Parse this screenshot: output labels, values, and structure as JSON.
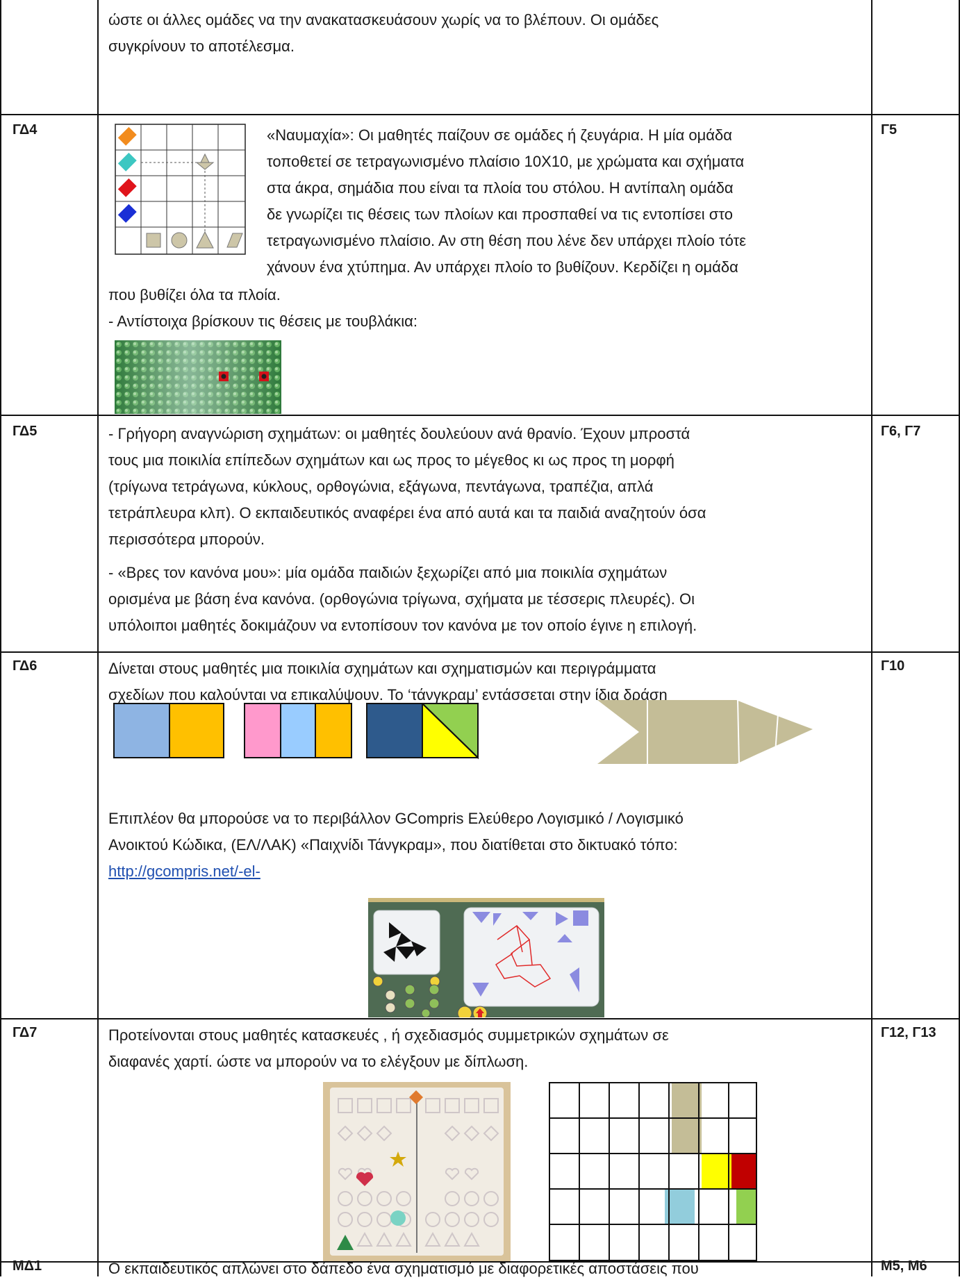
{
  "rows": [
    {
      "code": "",
      "ref": "",
      "lines": [
        "ώστε οι άλλες ομάδες να την ανακατασκευάσουν χωρίς να το βλέπουν. Οι ομάδες",
        "συγκρίνουν το αποτέλεσμα."
      ]
    },
    {
      "code": "ΓΔ4",
      "ref": "Γ5",
      "wrap_lines": [
        "«Ναυμαχία»: Οι μαθητές παίζουν σε ομάδες ή ζευγάρια. Η μία ομάδα",
        "τοποθετεί σε τετραγωνισμένο πλαίσιο 10Χ10, με χρώματα και σχήματα",
        "στα άκρα, σημάδια που είναι τα πλοία του στόλου. Η αντίπαλη ομάδα",
        "δε γνωρίζει τις θέσεις των πλοίων και προσπαθεί να τις εντοπίσει στο",
        "τετραγωνισμένο πλαίσιο. Αν στη θέση που λένε δεν υπάρχει πλοίο τότε",
        "χάνουν ένα χτύπημα. Αν υπάρχει πλοίο το βυθίζουν. Κερδίζει η ομάδα"
      ],
      "lines": [
        "που βυθίζει όλα τα πλοία.",
        "- Αντίστοιχα βρίσκουν τις θέσεις με τουβλάκια:"
      ]
    },
    {
      "code": "ΓΔ5",
      "ref": "Γ6, Γ7",
      "para1": [
        "- Γρήγορη αναγνώριση σχημάτων: οι μαθητές δουλεύουν ανά θρανίο. Έχουν μπροστά",
        "τους μια ποικιλία επίπεδων σχημάτων και ως προς το μέγεθος κι ως προς τη μορφή",
        "(τρίγωνα τετράγωνα, κύκλους, ορθογώνια, εξάγωνα, πεντάγωνα, τραπέζια, απλά",
        "τετράπλευρα κλπ). Ο εκπαιδευτικός αναφέρει ένα από αυτά και τα παιδιά αναζητούν όσα",
        "περισσότερα μπορούν."
      ],
      "para2": [
        "- «Βρες τον κανόνα μου»: μία ομάδα παιδιών ξεχωρίζει από μια ποικιλία σχημάτων",
        "ορισμένα με βάση ένα κανόνα. (ορθογώνια τρίγωνα, σχήματα με τέσσερις πλευρές). Οι",
        "υπόλοιποι μαθητές δοκιμάζουν να εντοπίσουν τον κανόνα με τον οποίο έγινε η επιλογή."
      ]
    },
    {
      "code": "ΓΔ6",
      "ref": "Γ10",
      "para1": [
        "Δίνεται στους μαθητές μια ποικιλία σχημάτων και σχηματισμών και  περιγράμματα",
        "σχεδίων που καλούνται να επικαλύψουν. Το ‘τάνγκραμ’ εντάσσεται στην ίδια δράση"
      ],
      "para2": [
        "Επιπλέον θα μπορούσε να το περιβάλλον GCompris Ελεύθερο Λογισμικό / Λογισμικό",
        "Ανοικτού Κώδικα, (ΕΛ/ΛΑΚ) «Παιχνίδι Τάνγκραμ», που διατίθεται στο δικτυακό τόπο:"
      ],
      "link": "http://gcompris.net/-el-"
    },
    {
      "code": "ΓΔ7",
      "ref": "Γ12, Γ13",
      "lines": [
        "Προτείνονται στους μαθητές κατασκευές , ή σχεδιασμός συμμετρικών σχημάτων σε",
        "διαφανές χαρτί. ώστε να μπορούν να το ελέγξουν με δίπλωση."
      ]
    },
    {
      "code": "ΜΔ1",
      "ref": "Μ5, Μ6",
      "lines": [
        "Ο εκπαιδευτικός απλώνει στο δάπεδο ένα σχηματισμό με διαφορετικές αποστάσεις που"
      ]
    }
  ],
  "colors": {
    "orange": "#f28c1e",
    "teal": "#3cc7c2",
    "red": "#e0141b",
    "blue": "#1a2fd6",
    "lego_green": "#2f7a3c",
    "tan": "#cdc6a8",
    "light_blue": "#8eb4e3",
    "amber": "#ffc000",
    "pink": "#ff99cc",
    "sky": "#99ccff",
    "navy": "#2e5a8c",
    "yellow": "#ffff00",
    "green": "#92d050",
    "grid_tan": "#c4bd97",
    "grid_yellow": "#ffff00",
    "grid_red": "#c00000",
    "grid_sky": "#92cddc",
    "grid_green": "#92d050"
  }
}
